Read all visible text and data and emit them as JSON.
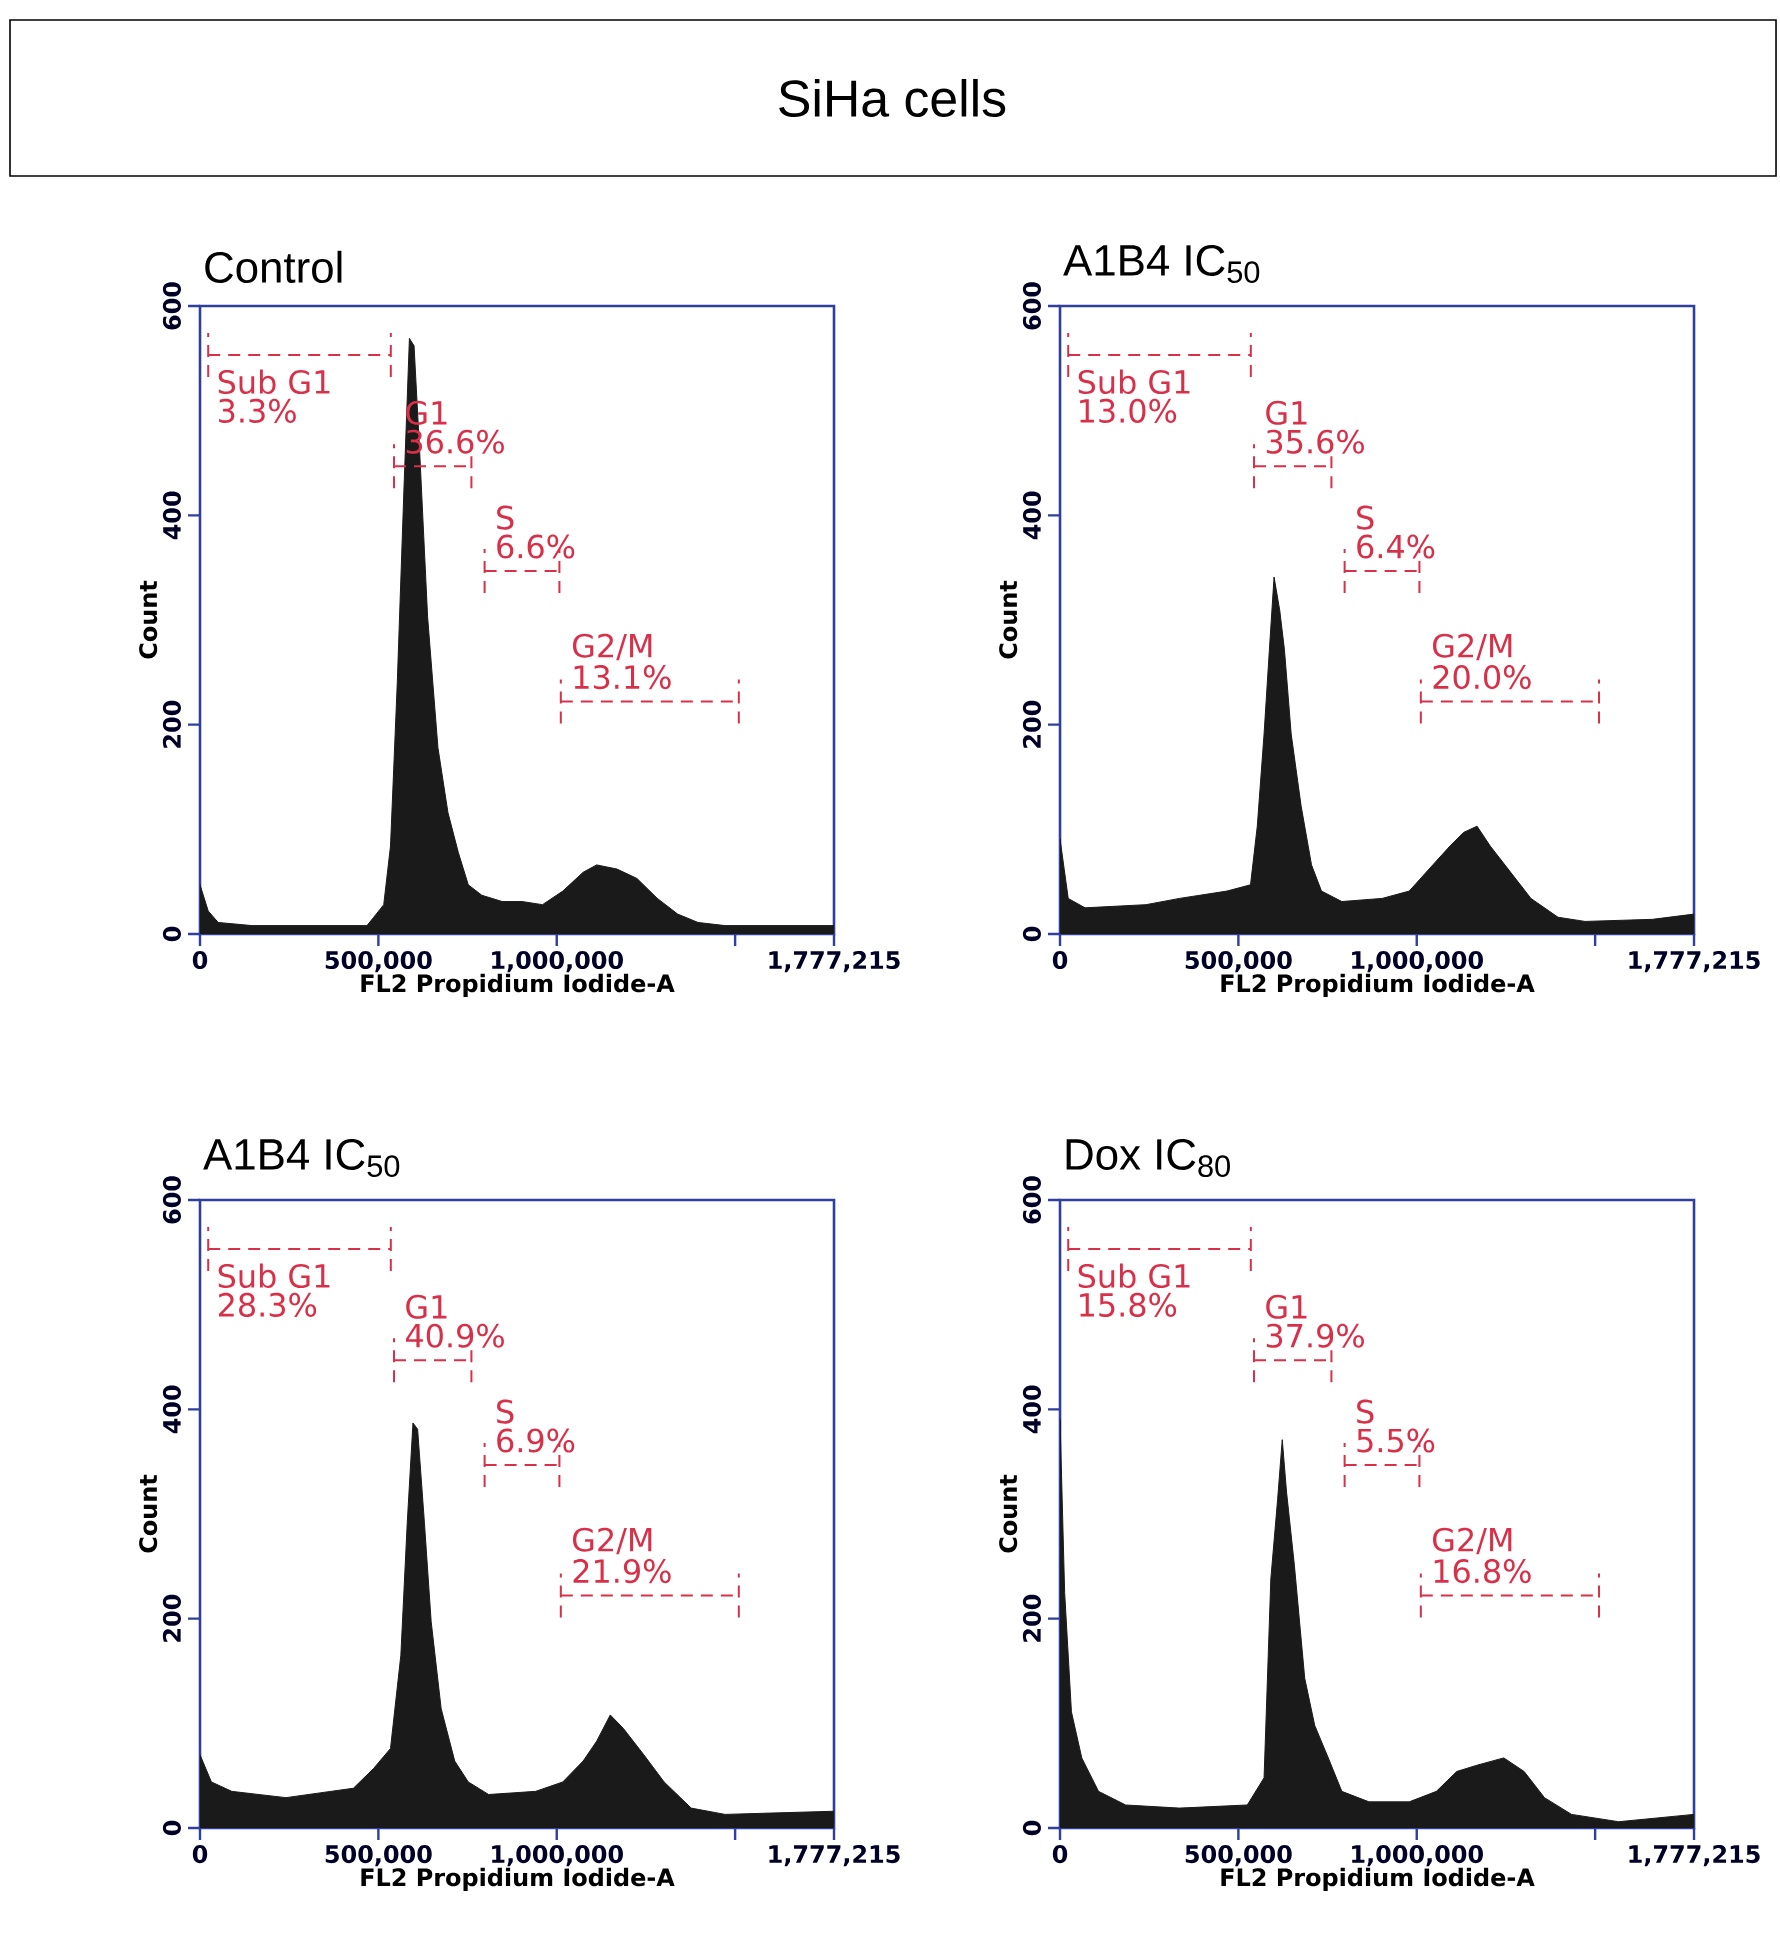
{
  "chart_data": [
    {
      "type": "other",
      "title": "SiHa cells"
    },
    {
      "type": "area",
      "title": "Control",
      "xlabel": "FL2 Propidium Iodide-A",
      "ylabel": "Count",
      "color": "#1a1a1a",
      "x": [
        0,
        23000,
        51000,
        146000,
        335000,
        468000,
        487000,
        515000,
        534000,
        553000,
        572000,
        587000,
        600000,
        616000,
        638000,
        667000,
        695000,
        724000,
        752000,
        790000,
        847000,
        903000,
        960000,
        1017000,
        1074000,
        1112000,
        1169000,
        1225000,
        1282000,
        1339000,
        1396000,
        1472000,
        1661000,
        1777000
      ],
      "values": [
        47,
        22,
        11,
        8,
        8,
        8,
        16,
        28,
        84,
        240,
        428,
        569,
        562,
        459,
        303,
        178,
        116,
        78,
        47,
        37,
        31,
        31,
        28,
        41,
        59,
        66,
        62,
        53,
        34,
        19,
        11,
        8,
        8,
        8
      ],
      "xlim": [
        0,
        1777215
      ],
      "ylim": [
        0,
        600
      ],
      "xticks": [
        0,
        {
          "value": 500000,
          "label": "500,000"
        },
        {
          "value": 1000000,
          "label": "1,000,000"
        },
        {
          "value": 1500000,
          "label": null
        },
        {
          "value": 1777215,
          "label": "1,777,215"
        }
      ],
      "yticks": [
        0,
        200,
        400,
        600
      ],
      "annotations": [
        "Sub G1",
        "3.3%",
        "G1",
        "36.6%",
        "S",
        "6.6%",
        "G2/M",
        "13.1%"
      ]
    },
    {
      "type": "area",
      "title": "A1B4 IC$_{50}$",
      "xlabel": "FL2 Propidium Iodide-A",
      "ylabel": "Count",
      "color": "#1a1a1a",
      "x": [
        0,
        23000,
        70000,
        241000,
        335000,
        468000,
        534000,
        553000,
        572000,
        587000,
        600000,
        616000,
        629000,
        648000,
        676000,
        705000,
        733000,
        790000,
        903000,
        979000,
        1045000,
        1093000,
        1131000,
        1169000,
        1206000,
        1263000,
        1320000,
        1396000,
        1472000,
        1661000,
        1777000
      ],
      "values": [
        91,
        34,
        25,
        28,
        34,
        41,
        47,
        103,
        191,
        272,
        341,
        309,
        272,
        191,
        122,
        66,
        41,
        31,
        34,
        41,
        66,
        84,
        97,
        103,
        84,
        59,
        34,
        16,
        12,
        14,
        19
      ],
      "xlim": [
        0,
        1777215
      ],
      "ylim": [
        0,
        600
      ],
      "xticks": [
        0,
        {
          "value": 500000,
          "label": "500,000"
        },
        {
          "value": 1000000,
          "label": "1,000,000"
        },
        {
          "value": 1500000,
          "label": null
        },
        {
          "value": 1777215,
          "label": "1,777,215"
        }
      ],
      "yticks": [
        0,
        200,
        400,
        600
      ],
      "annotations": [
        "Sub G1",
        "13.0%",
        "G1",
        "35.6%",
        "S",
        "6.4%",
        "G2/M",
        "20.0%"
      ]
    },
    {
      "type": "area",
      "title": "A1B4 IC$_{50}$",
      "xlabel": "FL2 Propidium Iodide-A",
      "ylabel": "Count",
      "color": "#1a1a1a",
      "x": [
        0,
        32000,
        89000,
        241000,
        430000,
        487000,
        534000,
        563000,
        581000,
        597000,
        610000,
        629000,
        648000,
        676000,
        714000,
        752000,
        809000,
        941000,
        1017000,
        1074000,
        1112000,
        1150000,
        1187000,
        1244000,
        1301000,
        1377000,
        1472000,
        1777000
      ],
      "values": [
        70,
        44,
        35,
        29,
        38,
        57,
        76,
        165,
        292,
        387,
        381,
        292,
        197,
        114,
        64,
        44,
        32,
        35,
        44,
        64,
        83,
        108,
        95,
        70,
        44,
        19,
        13,
        16
      ],
      "xlim": [
        0,
        1777215
      ],
      "ylim": [
        0,
        600
      ],
      "xticks": [
        0,
        {
          "value": 500000,
          "label": "500,000"
        },
        {
          "value": 1000000,
          "label": "1,000,000"
        },
        {
          "value": 1500000,
          "label": null
        },
        {
          "value": 1777215,
          "label": "1,777,215"
        }
      ],
      "yticks": [
        0,
        200,
        400,
        600
      ],
      "annotations": [
        "Sub G1",
        "28.3%",
        "G1",
        "40.9%",
        "S",
        "6.9%",
        "G2/M",
        "21.9%"
      ]
    },
    {
      "type": "area",
      "title": "Dox IC$_{80}$",
      "xlabel": "FL2 Propidium Iodide-A",
      "ylabel": "Count",
      "color": "#1a1a1a",
      "x": [
        0,
        13000,
        32000,
        61000,
        108000,
        184000,
        335000,
        525000,
        572000,
        591000,
        610000,
        623000,
        635000,
        657000,
        686000,
        714000,
        752000,
        790000,
        866000,
        979000,
        1055000,
        1112000,
        1169000,
        1244000,
        1301000,
        1358000,
        1434000,
        1566000,
        1777000
      ],
      "values": [
        391,
        225,
        111,
        67,
        35,
        22,
        19,
        22,
        48,
        238,
        314,
        371,
        321,
        251,
        143,
        98,
        67,
        35,
        25,
        25,
        35,
        54,
        60,
        67,
        54,
        29,
        13,
        6,
        13
      ],
      "xlim": [
        0,
        1777215
      ],
      "ylim": [
        0,
        600
      ],
      "xticks": [
        0,
        {
          "value": 500000,
          "label": "500,000"
        },
        {
          "value": 1000000,
          "label": "1,000,000"
        },
        {
          "value": 1500000,
          "label": null
        },
        {
          "value": 1777215,
          "label": "1,777,215"
        }
      ],
      "yticks": [
        0,
        200,
        400,
        600
      ],
      "annotations": [
        "Sub G1",
        "15.8%",
        "G1",
        "37.9%",
        "S",
        "5.5%",
        "G2/M",
        "16.8%"
      ]
    }
  ]
}
